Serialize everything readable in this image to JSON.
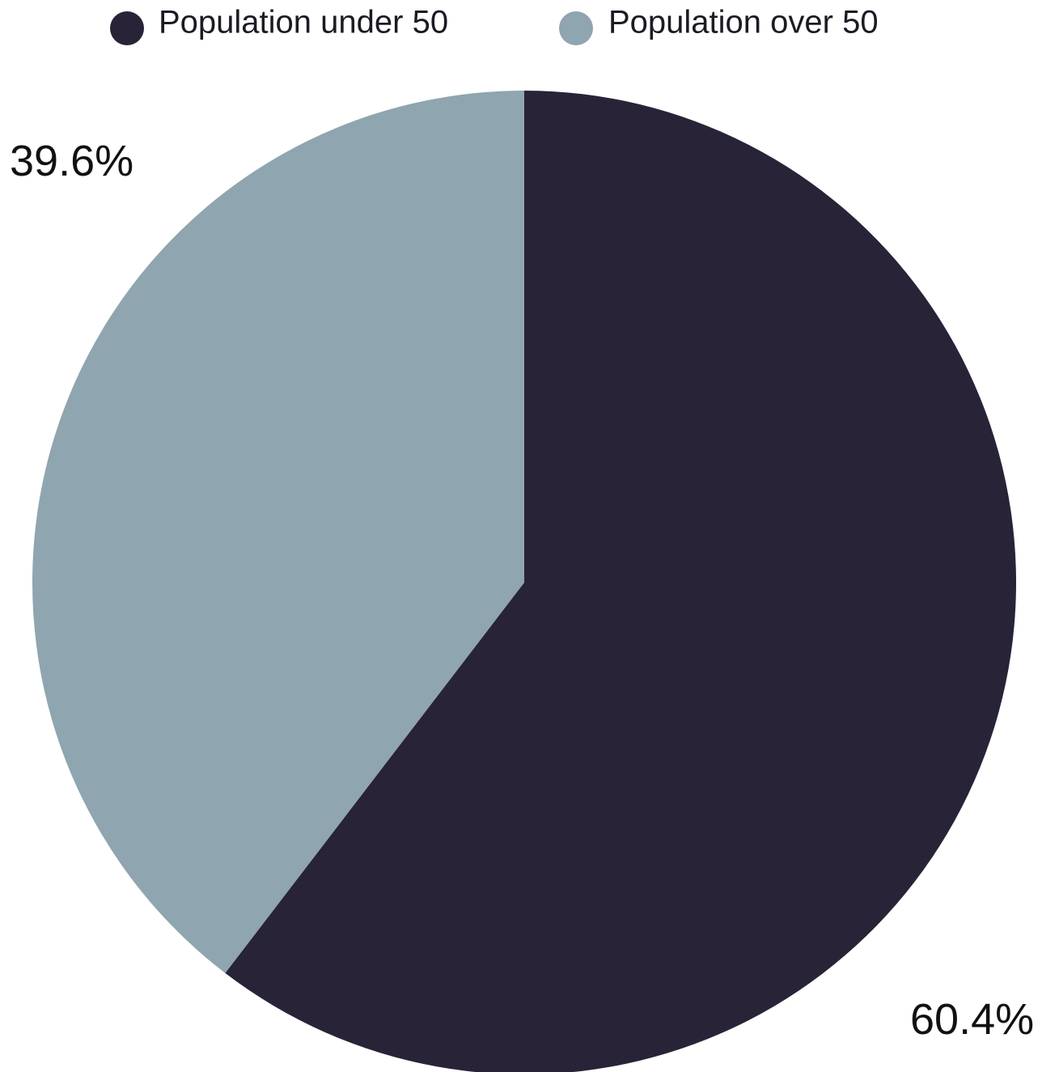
{
  "chart_data": {
    "type": "pie",
    "title": "",
    "legend_position": "top",
    "start_angle_deg": 0,
    "direction": "clockwise",
    "series": [
      {
        "name": "Population under 50",
        "value": 60.4,
        "label": "60.4%",
        "color": "#282337"
      },
      {
        "name": "Population over 50",
        "value": 39.6,
        "label": "39.6%",
        "color": "#8fa5af"
      }
    ]
  }
}
